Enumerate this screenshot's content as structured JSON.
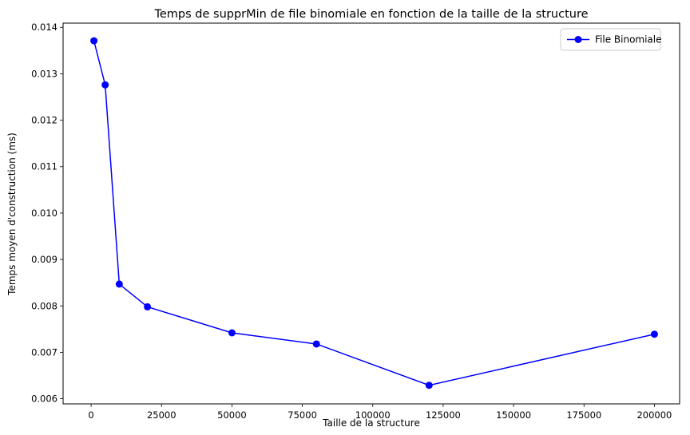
{
  "chart_data": {
    "type": "line",
    "title": "Temps de supprMin de file binomiale en fonction de la taille de la structure",
    "xlabel": "Taille de la structure",
    "ylabel": "Temps moyen d'construction (ms)",
    "xlim": [
      -9950,
      208950
    ],
    "ylim": [
      0.00589,
      0.01409
    ],
    "x_ticks": [
      0,
      25000,
      50000,
      75000,
      100000,
      125000,
      150000,
      175000,
      200000
    ],
    "y_ticks": [
      0.006,
      0.007,
      0.008,
      0.009,
      0.01,
      0.011,
      0.012,
      0.013,
      0.014
    ],
    "x_tick_labels": [
      "0",
      "25000",
      "50000",
      "75000",
      "100000",
      "125000",
      "150000",
      "175000",
      "200000"
    ],
    "y_tick_labels": [
      "0.006",
      "0.007",
      "0.008",
      "0.009",
      "0.010",
      "0.011",
      "0.012",
      "0.013",
      "0.014"
    ],
    "grid": false,
    "legend_position": "top-right",
    "series": [
      {
        "name": "File Binomiale",
        "color": "#0000ff",
        "marker": "circle",
        "x": [
          1000,
          5000,
          10000,
          20000,
          50000,
          80000,
          120000,
          200000
        ],
        "y": [
          0.01371,
          0.01276,
          0.00847,
          0.00798,
          0.00742,
          0.00718,
          0.00629,
          0.00739
        ]
      }
    ]
  }
}
